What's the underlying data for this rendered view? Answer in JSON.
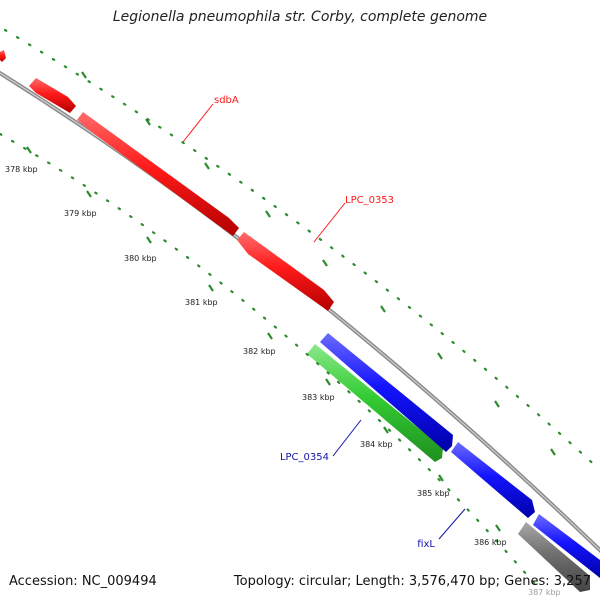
{
  "title": "Legionella pneumophila str. Corby, complete genome",
  "footer": {
    "accession": "Accession: NC_009494",
    "summary": "Topology: circular; Length: 3,576,470 bp; Genes: 3,257"
  },
  "colors": {
    "backbone": "#8a8a8a",
    "tick": "#2e8b2e",
    "forward": "#ff1a1a",
    "reverse_blue": "#1414ff",
    "reverse_green": "#33cc33",
    "other": "#707070"
  },
  "ticks": [
    {
      "label": "378 kbp"
    },
    {
      "label": "379 kbp"
    },
    {
      "label": "380 kbp"
    },
    {
      "label": "381 kbp"
    },
    {
      "label": "382 kbp"
    },
    {
      "label": "383 kbp"
    },
    {
      "label": "384 kbp"
    },
    {
      "label": "385 kbp"
    },
    {
      "label": "386 kbp"
    },
    {
      "label": "387 kbp"
    }
  ],
  "gene_labels": [
    {
      "name": "sdbA",
      "color": "#ff1a1a"
    },
    {
      "name": "LPC_0353",
      "color": "#ff1a1a"
    },
    {
      "name": "LPC_0354",
      "color": "#1414aa"
    },
    {
      "name": "fixL",
      "color": "#1414aa"
    }
  ]
}
